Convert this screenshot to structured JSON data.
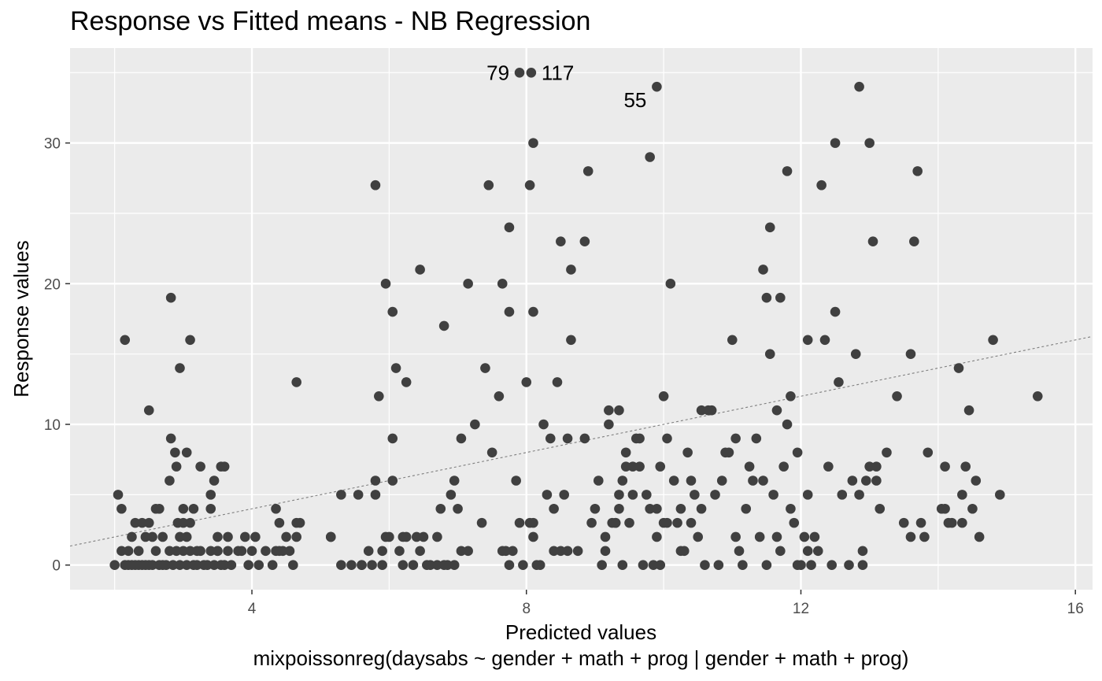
{
  "chart_data": {
    "type": "scatter",
    "title": "Response vs Fitted means - NB Regression",
    "xlabel": "Predicted values",
    "xlabel_sub": "mixpoissonreg(daysabs ~ gender + math + prog | gender + math + prog)",
    "ylabel": "Response values",
    "xlim": [
      1.35,
      16.25
    ],
    "ylim": [
      -1.75,
      36.75
    ],
    "x_ticks": [
      4,
      8,
      12,
      16
    ],
    "y_ticks": [
      0,
      10,
      20,
      30
    ],
    "x_minor_ticks": [
      2,
      6,
      10,
      14
    ],
    "y_minor_ticks": [
      5,
      15,
      25,
      35
    ],
    "grid": true,
    "panel_background": "#ebebeb",
    "grid_color": "#ffffff",
    "point_color": "#404040",
    "reference_line": {
      "style": "dashed",
      "color": "#7f7f7f",
      "slope": 1,
      "intercept": 0
    },
    "labels": [
      {
        "text": "79",
        "x": 7.9,
        "y": 35,
        "anchor": "end"
      },
      {
        "text": "117",
        "x": 8.07,
        "y": 35,
        "anchor": "start"
      },
      {
        "text": "55",
        "x": 9.9,
        "y": 34,
        "anchor": "end"
      }
    ],
    "points": [
      [
        2.0,
        0
      ],
      [
        2.05,
        5
      ],
      [
        2.1,
        4
      ],
      [
        2.1,
        1
      ],
      [
        2.15,
        0
      ],
      [
        2.15,
        16
      ],
      [
        2.2,
        0
      ],
      [
        2.2,
        1
      ],
      [
        2.25,
        0
      ],
      [
        2.25,
        2
      ],
      [
        2.3,
        0
      ],
      [
        2.3,
        3
      ],
      [
        2.35,
        0
      ],
      [
        2.35,
        1
      ],
      [
        2.4,
        0
      ],
      [
        2.4,
        3
      ],
      [
        2.45,
        0
      ],
      [
        2.45,
        2
      ],
      [
        2.5,
        0
      ],
      [
        2.5,
        11
      ],
      [
        2.5,
        3
      ],
      [
        2.55,
        0
      ],
      [
        2.55,
        2
      ],
      [
        2.6,
        1
      ],
      [
        2.6,
        4
      ],
      [
        2.65,
        0
      ],
      [
        2.65,
        4
      ],
      [
        2.7,
        0
      ],
      [
        2.7,
        2
      ],
      [
        2.75,
        0
      ],
      [
        2.8,
        1
      ],
      [
        2.8,
        6
      ],
      [
        2.82,
        19
      ],
      [
        2.82,
        9
      ],
      [
        2.85,
        0
      ],
      [
        2.88,
        8
      ],
      [
        2.9,
        7
      ],
      [
        2.9,
        1
      ],
      [
        2.92,
        3
      ],
      [
        2.95,
        14
      ],
      [
        2.95,
        0
      ],
      [
        2.95,
        2
      ],
      [
        3.0,
        1
      ],
      [
        3.0,
        3
      ],
      [
        3.0,
        4
      ],
      [
        3.05,
        0
      ],
      [
        3.05,
        8
      ],
      [
        3.05,
        2
      ],
      [
        3.1,
        16
      ],
      [
        3.1,
        1
      ],
      [
        3.1,
        3
      ],
      [
        3.15,
        0
      ],
      [
        3.15,
        4
      ],
      [
        3.2,
        1
      ],
      [
        3.2,
        0
      ],
      [
        3.25,
        7
      ],
      [
        3.25,
        1
      ],
      [
        3.3,
        0
      ],
      [
        3.35,
        0
      ],
      [
        3.4,
        1
      ],
      [
        3.4,
        4
      ],
      [
        3.4,
        5
      ],
      [
        3.45,
        6
      ],
      [
        3.45,
        0
      ],
      [
        3.5,
        1
      ],
      [
        3.5,
        2
      ],
      [
        3.55,
        0
      ],
      [
        3.55,
        7
      ],
      [
        3.6,
        0
      ],
      [
        3.6,
        7
      ],
      [
        3.65,
        1
      ],
      [
        3.65,
        2
      ],
      [
        3.7,
        0
      ],
      [
        3.8,
        1
      ],
      [
        3.85,
        1
      ],
      [
        3.9,
        2
      ],
      [
        3.95,
        0
      ],
      [
        4.0,
        1
      ],
      [
        4.05,
        2
      ],
      [
        4.1,
        0
      ],
      [
        4.2,
        1
      ],
      [
        4.3,
        0
      ],
      [
        4.35,
        4
      ],
      [
        4.35,
        1
      ],
      [
        4.4,
        3
      ],
      [
        4.4,
        1
      ],
      [
        4.45,
        1
      ],
      [
        4.5,
        2
      ],
      [
        4.55,
        1
      ],
      [
        4.6,
        0
      ],
      [
        4.65,
        13
      ],
      [
        4.65,
        3
      ],
      [
        4.65,
        2
      ],
      [
        4.7,
        3
      ],
      [
        5.15,
        2
      ],
      [
        5.3,
        5
      ],
      [
        5.55,
        5
      ],
      [
        5.6,
        0
      ],
      [
        5.8,
        6
      ],
      [
        5.8,
        5
      ],
      [
        5.85,
        12
      ],
      [
        5.95,
        2
      ],
      [
        6.05,
        6
      ],
      [
        6.05,
        9
      ],
      [
        6.1,
        14
      ],
      [
        6.2,
        0
      ],
      [
        6.25,
        13
      ],
      [
        6.25,
        2
      ],
      [
        6.35,
        0
      ],
      [
        6.4,
        2
      ],
      [
        6.45,
        1
      ],
      [
        6.5,
        2
      ],
      [
        6.55,
        0
      ],
      [
        6.6,
        0
      ],
      [
        6.7,
        2
      ],
      [
        6.7,
        0
      ],
      [
        6.75,
        4
      ],
      [
        6.8,
        0
      ],
      [
        6.8,
        17
      ],
      [
        6.85,
        0
      ],
      [
        6.9,
        5
      ],
      [
        6.95,
        6
      ],
      [
        6.95,
        0
      ],
      [
        7.0,
        4
      ],
      [
        7.05,
        9
      ],
      [
        7.05,
        1
      ],
      [
        7.15,
        1
      ],
      [
        7.25,
        10
      ],
      [
        7.35,
        3
      ],
      [
        7.4,
        14
      ],
      [
        7.45,
        27
      ],
      [
        7.5,
        8
      ],
      [
        7.6,
        12
      ],
      [
        7.65,
        1
      ],
      [
        7.65,
        20
      ],
      [
        7.7,
        1
      ],
      [
        7.75,
        0
      ],
      [
        7.75,
        18
      ],
      [
        7.8,
        1
      ],
      [
        7.85,
        6
      ],
      [
        7.9,
        3
      ],
      [
        7.95,
        0
      ],
      [
        8.0,
        13
      ],
      [
        8.05,
        3
      ],
      [
        8.1,
        2
      ],
      [
        8.1,
        3
      ],
      [
        8.15,
        0
      ],
      [
        8.2,
        0
      ],
      [
        8.25,
        10
      ],
      [
        8.3,
        5
      ],
      [
        8.35,
        9
      ],
      [
        8.4,
        1
      ],
      [
        8.4,
        4
      ],
      [
        8.45,
        13
      ],
      [
        8.5,
        1
      ],
      [
        8.55,
        5
      ],
      [
        8.6,
        9
      ],
      [
        8.6,
        1
      ],
      [
        8.65,
        21
      ],
      [
        8.65,
        16
      ],
      [
        8.75,
        1
      ],
      [
        8.85,
        9
      ],
      [
        8.95,
        3
      ],
      [
        9.0,
        4
      ],
      [
        9.05,
        6
      ],
      [
        9.1,
        0
      ],
      [
        9.15,
        2
      ],
      [
        9.15,
        1
      ],
      [
        9.2,
        10
      ],
      [
        9.2,
        11
      ],
      [
        9.25,
        3
      ],
      [
        9.3,
        3
      ],
      [
        9.35,
        5
      ],
      [
        9.4,
        0
      ],
      [
        9.45,
        8
      ],
      [
        9.5,
        3
      ],
      [
        9.55,
        7
      ],
      [
        9.6,
        9
      ],
      [
        9.65,
        9
      ],
      [
        9.7,
        0
      ],
      [
        9.75,
        5
      ],
      [
        9.8,
        4
      ],
      [
        9.85,
        0
      ],
      [
        9.9,
        2
      ],
      [
        9.95,
        0
      ],
      [
        10.0,
        12
      ],
      [
        10.05,
        9
      ],
      [
        10.1,
        20
      ],
      [
        10.15,
        6
      ],
      [
        10.2,
        3
      ],
      [
        10.25,
        1
      ],
      [
        10.3,
        1
      ],
      [
        10.35,
        8
      ],
      [
        10.4,
        3
      ],
      [
        10.45,
        5
      ],
      [
        10.5,
        2
      ],
      [
        10.55,
        4
      ],
      [
        10.6,
        0
      ],
      [
        10.65,
        11
      ],
      [
        10.7,
        11
      ],
      [
        10.75,
        5
      ],
      [
        10.8,
        0
      ],
      [
        10.85,
        6
      ],
      [
        10.9,
        8
      ],
      [
        10.95,
        8
      ],
      [
        11.0,
        16
      ],
      [
        11.05,
        2
      ],
      [
        11.1,
        1
      ],
      [
        11.15,
        0
      ],
      [
        11.2,
        4
      ],
      [
        11.25,
        7
      ],
      [
        11.3,
        6
      ],
      [
        11.35,
        9
      ],
      [
        11.4,
        2
      ],
      [
        11.45,
        6
      ],
      [
        11.5,
        19
      ],
      [
        11.5,
        0
      ],
      [
        11.55,
        24
      ],
      [
        11.6,
        5
      ],
      [
        11.65,
        2
      ],
      [
        11.7,
        19
      ],
      [
        11.7,
        1
      ],
      [
        11.75,
        7
      ],
      [
        11.8,
        10
      ],
      [
        11.85,
        12
      ],
      [
        11.9,
        3
      ],
      [
        11.95,
        0
      ],
      [
        12.0,
        0
      ],
      [
        12.05,
        2
      ],
      [
        12.1,
        1
      ],
      [
        12.15,
        0
      ],
      [
        12.2,
        2
      ],
      [
        12.25,
        1
      ],
      [
        12.3,
        27
      ],
      [
        12.35,
        16
      ],
      [
        12.4,
        7
      ],
      [
        12.45,
        0
      ],
      [
        12.5,
        30
      ],
      [
        12.5,
        18
      ],
      [
        12.55,
        13
      ],
      [
        12.6,
        5
      ],
      [
        12.7,
        0
      ],
      [
        12.75,
        6
      ],
      [
        12.8,
        15
      ],
      [
        12.85,
        5
      ],
      [
        12.9,
        1
      ],
      [
        12.9,
        0
      ],
      [
        12.95,
        6
      ],
      [
        13.0,
        7
      ],
      [
        13.05,
        23
      ],
      [
        13.1,
        7
      ],
      [
        13.15,
        4
      ],
      [
        13.25,
        8
      ],
      [
        13.4,
        12
      ],
      [
        13.5,
        3
      ],
      [
        13.6,
        2
      ],
      [
        13.65,
        23
      ],
      [
        13.7,
        28
      ],
      [
        13.75,
        3
      ],
      [
        13.8,
        2
      ],
      [
        13.85,
        8
      ],
      [
        14.05,
        4
      ],
      [
        14.1,
        4
      ],
      [
        14.15,
        3
      ],
      [
        14.2,
        3
      ],
      [
        14.35,
        5
      ],
      [
        14.35,
        3
      ],
      [
        14.4,
        7
      ],
      [
        14.45,
        11
      ],
      [
        14.5,
        4
      ],
      [
        14.55,
        6
      ],
      [
        14.6,
        2
      ]
    ],
    "points_extra": [
      [
        5.15,
        2
      ],
      [
        3.5,
        1
      ],
      [
        5.3,
        0
      ],
      [
        5.45,
        0
      ],
      [
        5.6,
        0
      ],
      [
        5.75,
        0
      ],
      [
        5.7,
        1
      ],
      [
        5.9,
        1
      ],
      [
        6.2,
        2
      ],
      [
        6.0,
        2
      ],
      [
        6.15,
        1
      ],
      [
        5.9,
        0
      ]
    ]
  }
}
